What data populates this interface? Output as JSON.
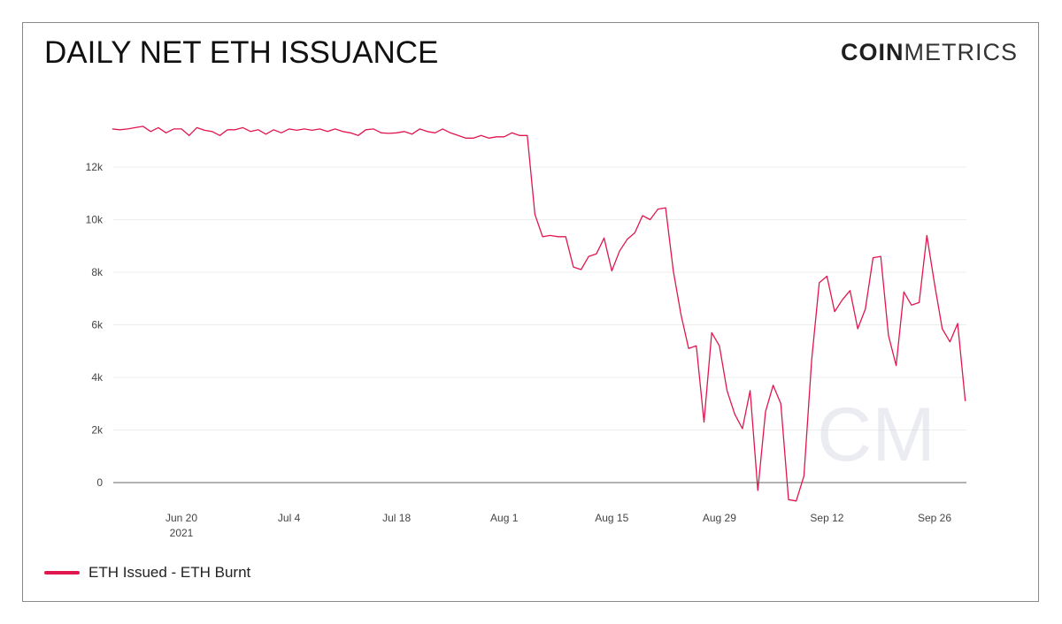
{
  "header": {
    "title": "DAILY NET ETH ISSUANCE",
    "logo_bold": "COIN",
    "logo_light": "METRICS",
    "watermark": "CM"
  },
  "legend": {
    "label": "ETH Issued - ETH Burnt",
    "color": "#e0174f"
  },
  "chart_data": {
    "type": "line",
    "title": "DAILY NET ETH ISSUANCE",
    "xlabel": "",
    "ylabel": "",
    "x_start": "2021-06-11",
    "x_ticks": [
      {
        "date": "2021-06-20",
        "label": "Jun 20",
        "sublabel": "2021"
      },
      {
        "date": "2021-07-04",
        "label": "Jul 4",
        "sublabel": ""
      },
      {
        "date": "2021-07-18",
        "label": "Jul 18",
        "sublabel": ""
      },
      {
        "date": "2021-08-01",
        "label": "Aug 1",
        "sublabel": ""
      },
      {
        "date": "2021-08-15",
        "label": "Aug 15",
        "sublabel": ""
      },
      {
        "date": "2021-08-29",
        "label": "Aug 29",
        "sublabel": ""
      },
      {
        "date": "2021-09-12",
        "label": "Sep 12",
        "sublabel": ""
      },
      {
        "date": "2021-09-26",
        "label": "Sep 26",
        "sublabel": ""
      }
    ],
    "y_ticks": [
      {
        "value": 0,
        "label": "0"
      },
      {
        "value": 2000,
        "label": "2k"
      },
      {
        "value": 4000,
        "label": "4k"
      },
      {
        "value": 6000,
        "label": "6k"
      },
      {
        "value": 8000,
        "label": "8k"
      },
      {
        "value": 10000,
        "label": "10k"
      },
      {
        "value": 12000,
        "label": "12k"
      }
    ],
    "ylim": [
      -800,
      14000
    ],
    "grid": true,
    "legend_position": "bottom-left",
    "series": [
      {
        "name": "ETH Issued - ETH Burnt",
        "color": "#e0174f",
        "values": [
          13450,
          13420,
          13450,
          13500,
          13550,
          13350,
          13500,
          13300,
          13450,
          13450,
          13200,
          13500,
          13400,
          13350,
          13200,
          13420,
          13420,
          13500,
          13350,
          13420,
          13250,
          13420,
          13300,
          13450,
          13400,
          13450,
          13400,
          13450,
          13350,
          13450,
          13350,
          13300,
          13200,
          13420,
          13450,
          13300,
          13280,
          13300,
          13350,
          13250,
          13450,
          13350,
          13300,
          13450,
          13300,
          13200,
          13100,
          13100,
          13200,
          13100,
          13150,
          13150,
          13300,
          13200,
          13200,
          10200,
          9350,
          9400,
          9350,
          9350,
          8200,
          8100,
          8600,
          8700,
          9300,
          8050,
          8800,
          9250,
          9500,
          10150,
          10000,
          10400,
          10450,
          8050,
          6400,
          5100,
          5200,
          2300,
          5700,
          5200,
          3500,
          2600,
          2050,
          3500,
          -300,
          2700,
          3700,
          3000,
          -650,
          -700,
          250,
          4650,
          7600,
          7850,
          6500,
          6950,
          7300,
          5850,
          6600,
          8550,
          8600,
          5600,
          4450,
          7250,
          6750,
          6850,
          9400,
          7550,
          5850,
          5350,
          6050,
          3100
        ]
      }
    ]
  }
}
